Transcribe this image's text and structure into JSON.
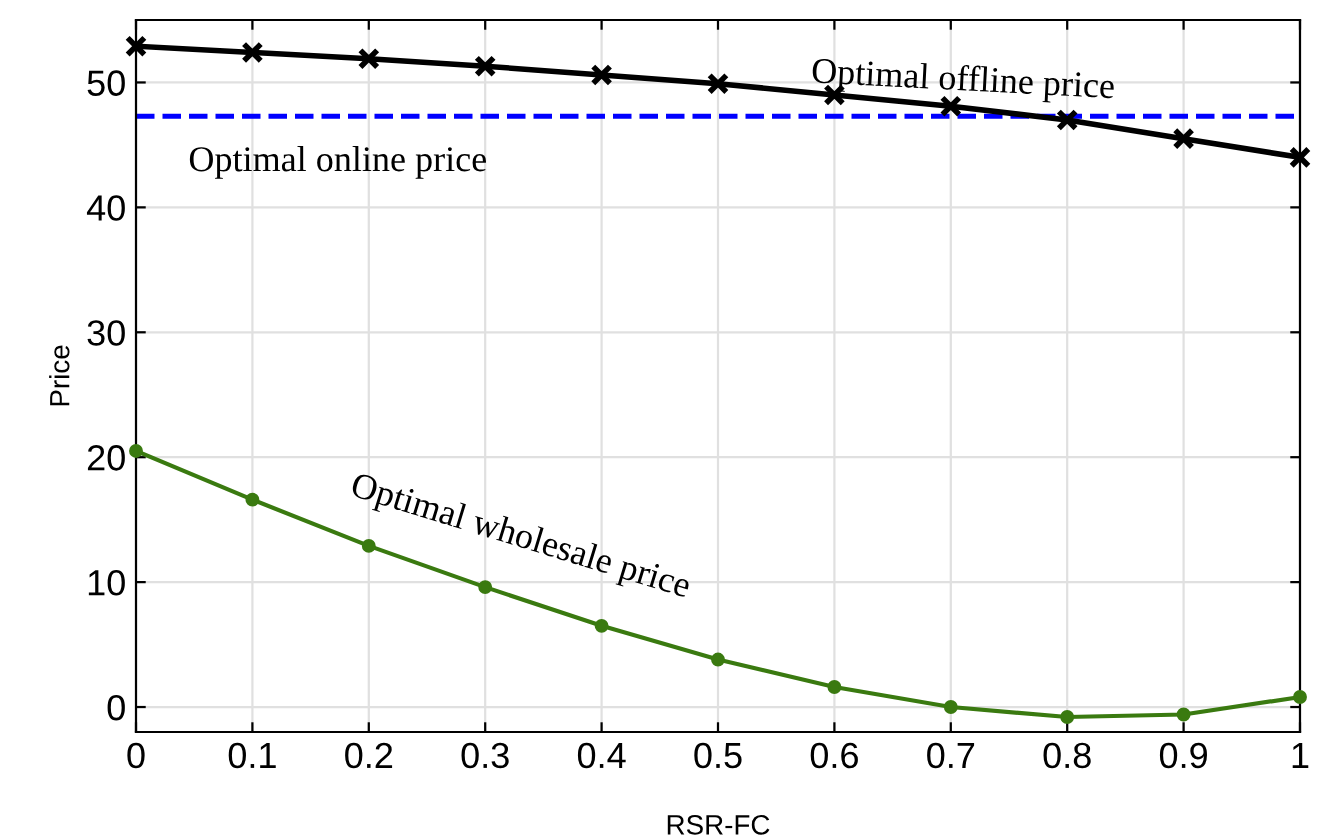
{
  "chart_data": {
    "type": "line",
    "xlabel": "RSR-FC",
    "ylabel": "Price",
    "x": [
      0,
      0.1,
      0.2,
      0.3,
      0.4,
      0.5,
      0.6,
      0.7,
      0.8,
      0.9,
      1
    ],
    "series": [
      {
        "color": "#000000",
        "marker": "cross",
        "values": [
          52.9,
          52.4,
          51.9,
          51.3,
          50.6,
          49.9,
          49.0,
          48.1,
          47.0,
          45.5,
          44.0
        ]
      },
      {
        "color": "#3a7a10",
        "marker": "circle",
        "values": [
          20.5,
          16.6,
          12.9,
          9.6,
          6.5,
          3.8,
          1.6,
          0.0,
          -0.8,
          -0.6,
          0.8
        ]
      }
    ],
    "ref_lines": [
      {
        "axis": "y",
        "value": 47.3,
        "color": "#0000ff",
        "line_style": "dashed"
      }
    ],
    "annotations": [
      "Optimal offline price",
      "Optimal online price",
      "Optimal wholesale price"
    ],
    "xlim": [
      0,
      1
    ],
    "xticks": [
      0,
      0.1,
      0.2,
      0.3,
      0.4,
      0.5,
      0.6,
      0.7,
      0.8,
      0.9,
      1
    ],
    "ylim": [
      -2,
      55
    ],
    "yticks": [
      0,
      10,
      20,
      30,
      40,
      50
    ],
    "grid": true,
    "line_style": "solid"
  }
}
